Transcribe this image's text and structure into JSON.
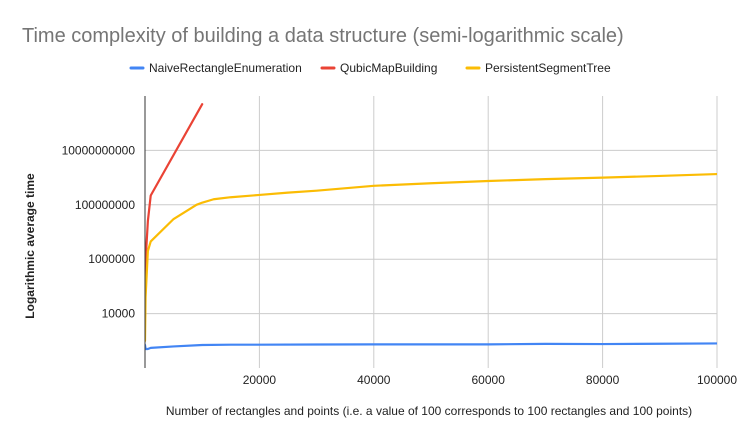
{
  "chart_data": {
    "type": "line",
    "title": "Time complexity of building a data structure (semi-logarithmic scale)",
    "xlabel": "Number of rectangles and points (i.e. a value of 100 corresponds to 100 rectangles and 100 points)",
    "ylabel": "Logarithmic average time",
    "xlim": [
      0,
      100000
    ],
    "ylog": true,
    "ylim": [
      100,
      1000000000000
    ],
    "x_ticks": [
      20000,
      40000,
      60000,
      80000,
      100000
    ],
    "x_tick_labels": [
      "20000",
      "40000",
      "60000",
      "80000",
      "100000"
    ],
    "y_ticks": [
      10000,
      1000000,
      100000000,
      10000000000
    ],
    "y_tick_labels": [
      "10000",
      "1000000",
      "100000000",
      "10000000000"
    ],
    "grid": true,
    "legend_position": "top",
    "series": [
      {
        "name": "NaiveRectangleEnumeration",
        "color": "#4285f4",
        "points": [
          [
            0,
            700
          ],
          [
            100,
            500
          ],
          [
            500,
            500
          ],
          [
            1000,
            550
          ],
          [
            5000,
            620
          ],
          [
            10000,
            700
          ],
          [
            15000,
            720
          ],
          [
            20000,
            720
          ],
          [
            30000,
            730
          ],
          [
            40000,
            740
          ],
          [
            50000,
            740
          ],
          [
            60000,
            740
          ],
          [
            70000,
            770
          ],
          [
            80000,
            760
          ],
          [
            90000,
            780
          ],
          [
            100000,
            800
          ]
        ]
      },
      {
        "name": "QubicMapBuilding",
        "color": "#ea4335",
        "points": [
          [
            0,
            8000
          ],
          [
            100,
            400000
          ],
          [
            200,
            2000000
          ],
          [
            500,
            25000000
          ],
          [
            1000,
            220000000
          ],
          [
            10000,
            500000000000
          ]
        ]
      },
      {
        "name": "PersistentSegmentTree",
        "color": "#fbbc04",
        "points": [
          [
            0,
            1000
          ],
          [
            100,
            40000
          ],
          [
            500,
            2000000
          ],
          [
            1000,
            4500000
          ],
          [
            5000,
            30000000
          ],
          [
            9000,
            100000000
          ],
          [
            10000,
            120000000
          ],
          [
            12000,
            160000000
          ],
          [
            15000,
            190000000
          ],
          [
            20000,
            230000000
          ],
          [
            25000,
            280000000
          ],
          [
            30000,
            330000000
          ],
          [
            40000,
            500000000
          ],
          [
            50000,
            620000000
          ],
          [
            60000,
            750000000
          ],
          [
            70000,
            880000000
          ],
          [
            80000,
            1000000000
          ],
          [
            90000,
            1150000000
          ],
          [
            100000,
            1350000000
          ]
        ]
      }
    ]
  }
}
